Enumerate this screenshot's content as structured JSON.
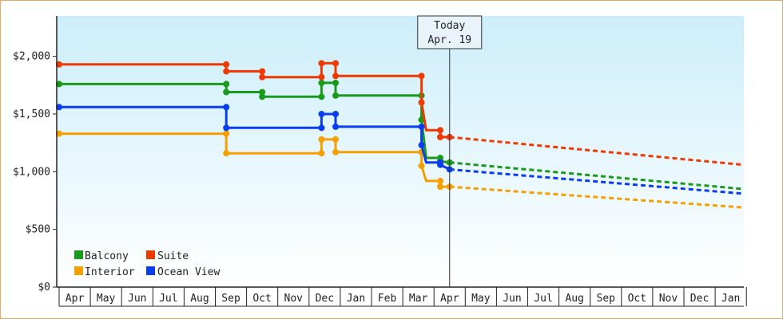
{
  "chart_data": {
    "type": "line",
    "y_ticks": [
      "$0",
      "$500",
      "$1,000",
      "$1,500",
      "$2,000"
    ],
    "ylim": [
      0,
      2350
    ],
    "months": [
      "Apr",
      "May",
      "Jun",
      "Jul",
      "Aug",
      "Sep",
      "Oct",
      "Nov",
      "Dec",
      "Jan",
      "Feb",
      "Mar",
      "Apr",
      "May",
      "Jun",
      "Jul",
      "Aug",
      "Sep",
      "Oct",
      "Nov",
      "Dec",
      "Jan"
    ],
    "today": {
      "line1": "Today",
      "line2": "Apr. 19",
      "x": 12.5
    },
    "legend_placement": "bottom-left",
    "series": [
      {
        "name": "Balcony",
        "color": "#1a9a1a",
        "points": [
          [
            0,
            1760
          ],
          [
            5.35,
            1760
          ],
          [
            5.35,
            1690
          ],
          [
            6.5,
            1690
          ],
          [
            6.5,
            1650
          ],
          [
            8.4,
            1650
          ],
          [
            8.4,
            1770
          ],
          [
            8.85,
            1770
          ],
          [
            8.85,
            1660
          ],
          [
            11.6,
            1660
          ],
          [
            11.6,
            1450
          ],
          [
            11.75,
            1120
          ],
          [
            12.2,
            1120
          ],
          [
            12.2,
            1090
          ],
          [
            12.5,
            1080
          ]
        ],
        "forecast": [
          [
            12.5,
            1080
          ],
          [
            21.9,
            850
          ]
        ]
      },
      {
        "name": "Suite",
        "color": "#ee3a00",
        "points": [
          [
            0,
            1930
          ],
          [
            5.35,
            1930
          ],
          [
            5.35,
            1870
          ],
          [
            6.5,
            1870
          ],
          [
            6.5,
            1820
          ],
          [
            8.4,
            1820
          ],
          [
            8.4,
            1940
          ],
          [
            8.85,
            1940
          ],
          [
            8.85,
            1830
          ],
          [
            11.6,
            1830
          ],
          [
            11.6,
            1600
          ],
          [
            11.75,
            1360
          ],
          [
            12.2,
            1360
          ],
          [
            12.2,
            1300
          ],
          [
            12.5,
            1300
          ]
        ],
        "forecast": [
          [
            12.5,
            1300
          ],
          [
            21.9,
            1060
          ]
        ]
      },
      {
        "name": "Interior",
        "color": "#f5a000",
        "points": [
          [
            0,
            1330
          ],
          [
            5.35,
            1330
          ],
          [
            5.35,
            1160
          ],
          [
            8.4,
            1160
          ],
          [
            8.4,
            1280
          ],
          [
            8.85,
            1280
          ],
          [
            8.85,
            1170
          ],
          [
            11.6,
            1170
          ],
          [
            11.6,
            1050
          ],
          [
            11.75,
            920
          ],
          [
            12.2,
            920
          ],
          [
            12.2,
            870
          ],
          [
            12.5,
            870
          ]
        ],
        "forecast": [
          [
            12.5,
            870
          ],
          [
            21.9,
            690
          ]
        ]
      },
      {
        "name": "Ocean View",
        "color": "#0a3cf0",
        "points": [
          [
            0,
            1560
          ],
          [
            5.35,
            1560
          ],
          [
            5.35,
            1380
          ],
          [
            8.4,
            1380
          ],
          [
            8.4,
            1500
          ],
          [
            8.85,
            1500
          ],
          [
            8.85,
            1390
          ],
          [
            11.6,
            1390
          ],
          [
            11.6,
            1230
          ],
          [
            11.75,
            1080
          ],
          [
            12.2,
            1080
          ],
          [
            12.2,
            1060
          ],
          [
            12.5,
            1020
          ]
        ],
        "forecast": [
          [
            12.5,
            1020
          ],
          [
            21.9,
            810
          ]
        ]
      }
    ]
  }
}
